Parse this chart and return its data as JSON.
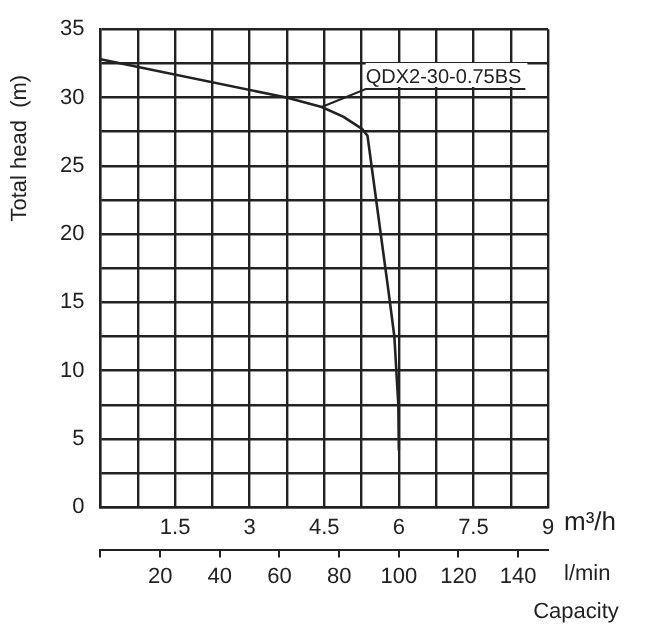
{
  "chart_data": {
    "type": "line",
    "ylabel": "Total head  (m)",
    "xlabel": "m³/h",
    "x2label": "l/min",
    "xlim": [
      0,
      9
    ],
    "xticks": [
      {
        "value": 0,
        "label": null
      },
      {
        "value": 0.75,
        "label": null
      },
      1.5,
      {
        "value": 2.25,
        "label": null
      },
      3,
      {
        "value": 3.75,
        "label": null
      },
      4.5,
      {
        "value": 5.25,
        "label": null
      },
      6,
      {
        "value": 6.75,
        "label": null
      },
      7.5,
      {
        "value": 8.25,
        "label": null
      },
      9
    ],
    "ylim": [
      0,
      35
    ],
    "yticks": [
      0,
      {
        "value": 2.5,
        "label": null
      },
      5,
      {
        "value": 7.5,
        "label": null
      },
      10,
      {
        "value": 12.5,
        "label": null
      },
      15,
      {
        "value": 17.5,
        "label": null
      },
      20,
      {
        "value": 22.5,
        "label": null
      },
      25,
      {
        "value": 27.5,
        "label": null
      },
      30,
      {
        "value": 32.5,
        "label": null
      },
      35
    ],
    "x2lim": [
      0,
      150
    ],
    "x2ticks": [
      {
        "value": 0,
        "label": null
      },
      20,
      40,
      60,
      80,
      100,
      120,
      140
    ],
    "grid": true,
    "legend": false,
    "marker": "none",
    "line_style": "solid",
    "series": [
      {
        "color": "#222222",
        "x": [
          0,
          3.74,
          4.45,
          4.88,
          5.26,
          5.37,
          5.8,
          5.91,
          5.99,
          6.0
        ],
        "values": [
          32.8,
          30.0,
          29.3,
          28.6,
          27.7,
          27.2,
          15.6,
          12.5,
          7.5,
          4.2
        ]
      }
    ],
    "annotations": [
      {
        "text": "QDX2-30-0.75BS",
        "x": 4.45,
        "y": 29.3
      },
      "Capacity"
    ]
  }
}
